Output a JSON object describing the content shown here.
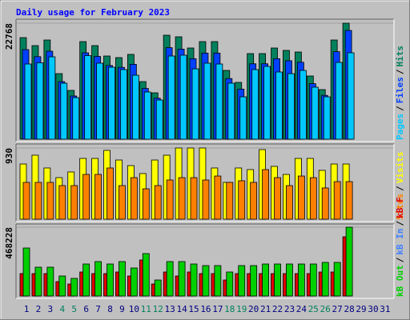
{
  "chart_data": {
    "type": "bar",
    "title": "Daily usage for February 2023",
    "separator": "/",
    "categories": [
      "1",
      "2",
      "3",
      "4",
      "5",
      "6",
      "7",
      "8",
      "9",
      "10",
      "11",
      "12",
      "13",
      "14",
      "15",
      "16",
      "17",
      "18",
      "19",
      "20",
      "21",
      "22",
      "23",
      "24",
      "25",
      "26",
      "27",
      "28",
      "29",
      "30",
      "31"
    ],
    "category_colors": [
      "#000080",
      "#000080",
      "#000080",
      "#00805c",
      "#00805c",
      "#000080",
      "#000080",
      "#000080",
      "#000080",
      "#000080",
      "#00805c",
      "#00805c",
      "#000080",
      "#000080",
      "#000080",
      "#000080",
      "#000080",
      "#00805c",
      "#00805c",
      "#000080",
      "#000080",
      "#000080",
      "#000080",
      "#000080",
      "#00805c",
      "#00805c",
      "#000080",
      "#000080",
      "#000080",
      "#000080",
      "#000080"
    ],
    "panels": [
      {
        "ylim": [
          0,
          22768
        ],
        "yticks": [
          22768
        ],
        "series": [
          {
            "name": "Hits",
            "color": "#00805c",
            "values": [
              19940,
              18370,
              19470,
              12875,
              9580,
              19155,
              18370,
              16330,
              16015,
              16645,
              11305,
              9105,
              20410,
              20100,
              17900,
              19155,
              19155,
              13500,
              11150,
              16800,
              16800,
              17900,
              17430,
              17115,
              12405,
              9735,
              19470,
              22768,
              null,
              null,
              null
            ]
          },
          {
            "name": "Files",
            "color": "#0040ff",
            "values": [
              17580,
              16200,
              17260,
              11300,
              8480,
              16950,
              16250,
              14460,
              14100,
              14700,
              9960,
              8050,
              17970,
              17680,
              15800,
              16900,
              16900,
              11900,
              9830,
              14800,
              14800,
              15800,
              15400,
              15100,
              10900,
              8600,
              17180,
              21350,
              null,
              null,
              null
            ]
          },
          {
            "name": "Pages",
            "color": "#00c8ff",
            "values": [
              14760,
              15000,
              16170,
              10990,
              8160,
              16400,
              14920,
              14130,
              13660,
              12560,
              9260,
              7690,
              16330,
              16490,
              13810,
              14920,
              14760,
              10990,
              8320,
              13660,
              14290,
              13190,
              12870,
              13500,
              10210,
              8320,
              15070,
              16960,
              null,
              null,
              null
            ]
          }
        ]
      },
      {
        "ylim": [
          0,
          930
        ],
        "yticks": [
          930
        ],
        "series": [
          {
            "name": "Visits",
            "color": "#ffff00",
            "values": [
              721,
              836,
              669,
              543,
              617,
              794,
              794,
              899,
              773,
              700,
              596,
              773,
              836,
              930,
              930,
              930,
              669,
              481,
              669,
              648,
              909,
              690,
              585,
              794,
              794,
              638,
              721,
              721,
              null,
              null,
              null
            ]
          },
          {
            "name": "Sites",
            "color": "#ff8000",
            "values": [
              481,
              481,
              481,
              439,
              439,
              585,
              585,
              669,
              439,
              543,
              397,
              439,
              512,
              543,
              543,
              512,
              564,
              481,
              502,
              481,
              648,
              543,
              439,
              564,
              543,
              408,
              491,
              491,
              null,
              null,
              null
            ]
          }
        ]
      },
      {
        "ylim": [
          0,
          468228
        ],
        "yticks": [
          468228
        ],
        "series": [
          {
            "name": "kB F",
            "color": "#e00000",
            "values": [
              152460,
              152460,
              152460,
              98010,
              81675,
              163350,
              152460,
              152460,
              163350,
              136125,
              245025,
              81675,
              163350,
              136125,
              163350,
              152460,
              152460,
              108900,
              152460,
              152460,
              152460,
              152460,
              152460,
              152460,
              152460,
              163350,
              163350,
              402930,
              null,
              null,
              null
            ]
          },
          {
            "name": "kB Out",
            "color": "#00d000",
            "values": [
              326700,
              196020,
              196020,
              136125,
              119790,
              217800,
              234135,
              217800,
              234135,
              190575,
              288585,
              108900,
              234135,
              234135,
              217800,
              206910,
              206910,
              163350,
              206910,
              206910,
              217800,
              217800,
              217800,
              217800,
              217800,
              228690,
              228690,
              468228,
              null,
              null,
              null
            ]
          }
        ],
        "legend_extra": {
          "name": "kB In",
          "color": "#4080ff",
          "position": 1
        }
      }
    ]
  }
}
